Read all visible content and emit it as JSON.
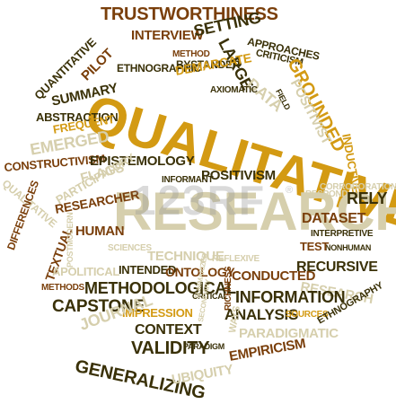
{
  "cloud": {
    "main_word": "QUALITATIVE",
    "second_word": "RESEARCH",
    "words": [
      "TRUSTWORTHINESS",
      "INTERVIEW",
      "SETTING",
      "LARGE",
      "APPROACHES",
      "CRITICISM",
      "GROUNDED",
      "POSITIVIST",
      "FIELD",
      "DATA",
      "METHOD",
      "BYSTANDER",
      "ETHNOGRAPHIC",
      "DEMARCATE",
      "AXIOMATIC",
      "QUANTITATIVE",
      "PILOT",
      "SUMMARY",
      "ABSTRACTION",
      "FREQUENT",
      "EMERGED",
      "CONSTRUCTIVISM",
      "EPISTEMOLOGY",
      "INFORMANT",
      "POSITIVISM",
      "FLAGS",
      "PARTICIPATORY",
      "QUALITATIVE",
      "RESEARCHER",
      "DIFFERENCES",
      "HUMAN",
      "INDUCTIVE",
      "CORROBORATION",
      "RESPOND",
      "RELY",
      "DATASET",
      "INTERPRETIVE",
      "NONHUMAN",
      "TEST",
      "RECURSIVE",
      "TEXTUAL",
      "POSTMODERN",
      "SCIENCES",
      "TECHNIQUE",
      "REFLEXIVE",
      "APOLITICAL",
      "INTENDED",
      "ONTOLOGY",
      "CONDUCTED",
      "RESEARCH",
      "METHODS",
      "METHODOLOGICAL",
      "CRITICAL",
      "RICHNESS",
      "INFORMATION",
      "CAPSTONE",
      "IMPRESSION",
      "SUMMARIZED",
      "ANALYSIS",
      "SOURCES",
      "ETHNOGRAPHY",
      "JOURNAL",
      "CONTEXT",
      "SECONDARY",
      "PARADIGM",
      "WAYS",
      "PARADIGMATIC",
      "VALIDITY",
      "GENERALIZING",
      "UBIQUITY",
      "EMPIRICISM"
    ]
  },
  "watermark": {
    "text": "123RF",
    "mark": "®"
  }
}
